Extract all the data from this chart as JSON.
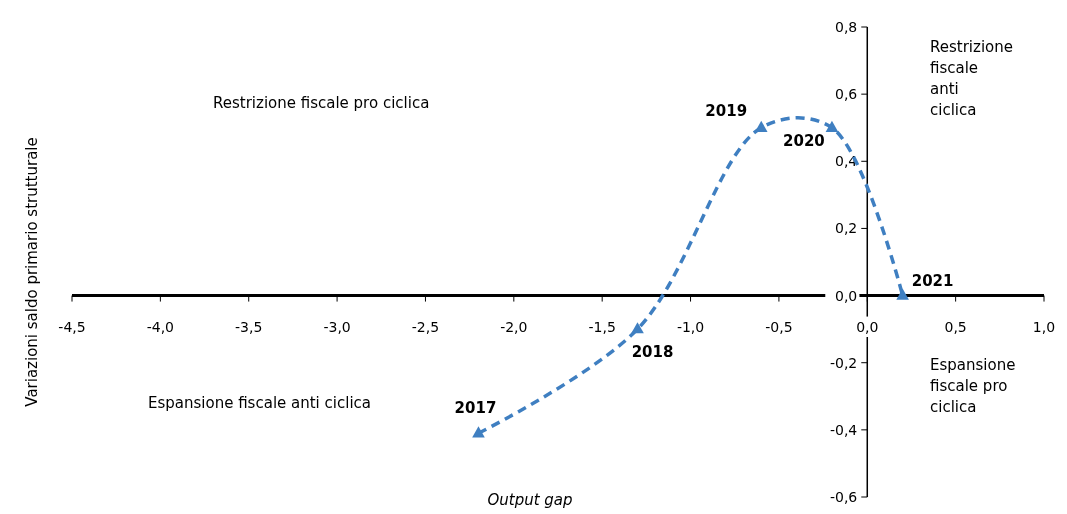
{
  "chart_data": {
    "type": "line",
    "xlabel": "Output gap",
    "ylabel": "Variazioni saldo primario strutturale",
    "x": [
      -2.2,
      -1.3,
      -0.6,
      -0.2,
      0.2
    ],
    "series": [
      {
        "color": "#3f7fc1",
        "values": [
          -0.41,
          -0.1,
          0.5,
          0.5,
          0.0
        ]
      }
    ],
    "marker": "triangle",
    "line_style": "dashed",
    "grid": false,
    "xlim": [
      -4.5,
      1.0
    ],
    "ylim": [
      -0.6,
      0.8
    ],
    "xticks": [
      {
        "value": -4.5,
        "label": "-4,5"
      },
      {
        "value": -4.0,
        "label": "-4,0"
      },
      {
        "value": -3.5,
        "label": "-3,5"
      },
      {
        "value": -3.0,
        "label": "-3,0"
      },
      {
        "value": -2.5,
        "label": "-2,5"
      },
      {
        "value": -2.0,
        "label": "-2,0"
      },
      {
        "value": -1.5,
        "label": "-1,5"
      },
      {
        "value": -1.0,
        "label": "-1,0"
      },
      {
        "value": -0.5,
        "label": "-0,5"
      },
      {
        "value": 0,
        "label": "0,0"
      },
      {
        "value": 0.5,
        "label": "0,5"
      },
      {
        "value": 1.0,
        "label": "1,0"
      }
    ],
    "yticks": [
      {
        "value": -0.6,
        "label": "-0,6"
      },
      {
        "value": -0.4,
        "label": "-0,4"
      },
      {
        "value": -0.2,
        "label": "-0,2"
      },
      {
        "value": 0,
        "label": "0,0"
      },
      {
        "value": 0.2,
        "label": "0,2"
      },
      {
        "value": 0.4,
        "label": "0,4"
      },
      {
        "value": 0.6,
        "label": "0,6"
      },
      {
        "value": 0.8,
        "label": "0,8"
      }
    ],
    "annotations": [
      {
        "text": "2017",
        "x": -2.2,
        "y": -0.41
      },
      {
        "text": "2018",
        "x": -1.3,
        "y": -0.1
      },
      {
        "text": "2019",
        "x": -0.6,
        "y": 0.5
      },
      {
        "text": "2020",
        "x": -0.2,
        "y": 0.5
      },
      {
        "text": "2021",
        "x": 0.2,
        "y": 0.0
      },
      "Restrizione fiscale pro ciclica",
      "Restrizione fiscale anti ciclica",
      "Espansione fiscale anti ciclica",
      "Espansione fiscale pro ciclica"
    ]
  }
}
